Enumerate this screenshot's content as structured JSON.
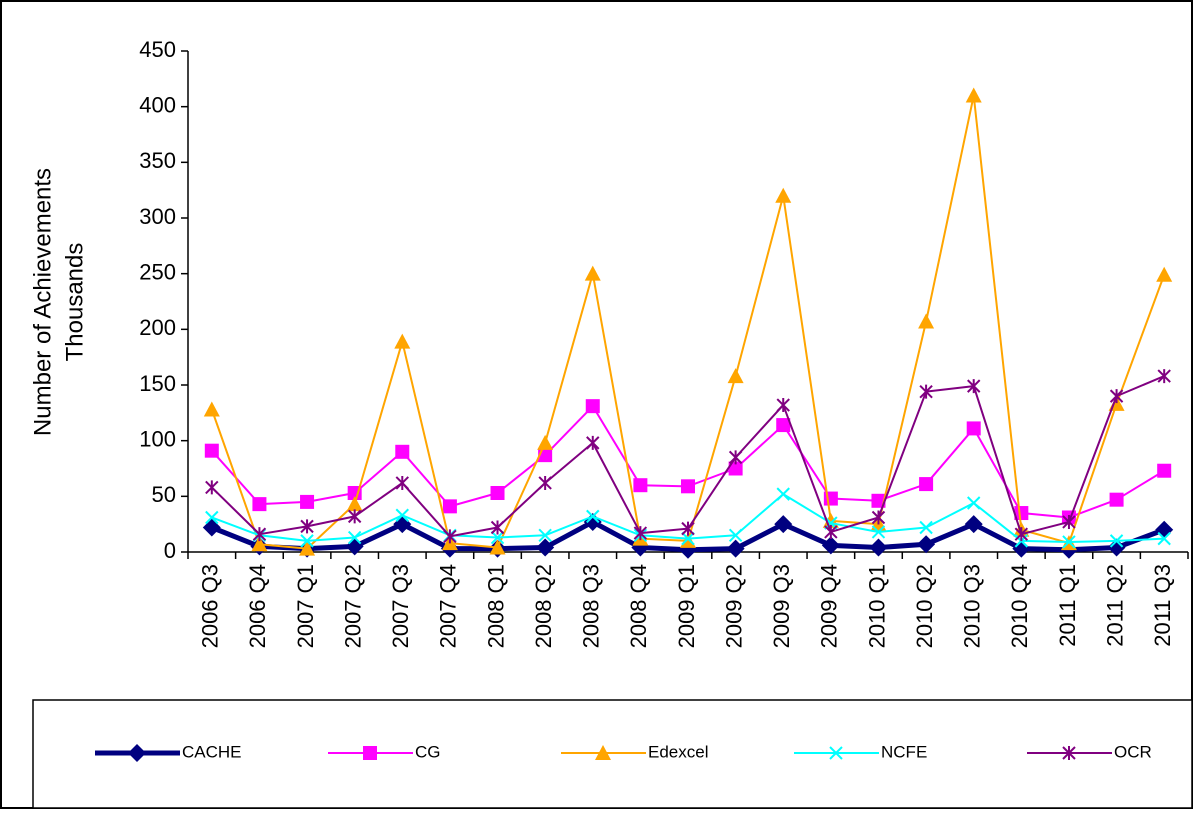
{
  "chart_data": {
    "type": "line",
    "ylabel": "Number of Achievements",
    "ylabel_units": "Thousands",
    "categories": [
      "2006 Q3",
      "2006 Q4",
      "2007 Q1",
      "2007 Q2",
      "2007 Q3",
      "2007 Q4",
      "2008 Q1",
      "2008 Q2",
      "2008 Q3",
      "2008 Q4",
      "2009 Q1",
      "2009 Q2",
      "2009 Q3",
      "2009 Q4",
      "2010 Q1",
      "2010 Q2",
      "2010 Q3",
      "2010 Q4",
      "2011 Q1",
      "2011 Q2",
      "2011 Q3"
    ],
    "series": [
      {
        "name": "CACHE",
        "color": "#000080",
        "marker": "diamond",
        "values": [
          22,
          5,
          3,
          5,
          25,
          3,
          3,
          4,
          27,
          4,
          2,
          3,
          25,
          6,
          4,
          7,
          25,
          3,
          2,
          4,
          20
        ]
      },
      {
        "name": "CG",
        "color": "#ff00ff",
        "marker": "square",
        "values": [
          91,
          43,
          45,
          53,
          90,
          41,
          53,
          87,
          131,
          60,
          59,
          75,
          114,
          48,
          46,
          61,
          111,
          35,
          31,
          47,
          73
        ]
      },
      {
        "name": "Edexcel",
        "color": "#ffa500",
        "marker": "triangle",
        "values": [
          128,
          7,
          3,
          43,
          189,
          8,
          4,
          98,
          250,
          12,
          10,
          158,
          320,
          28,
          25,
          207,
          410,
          20,
          8,
          133,
          249
        ]
      },
      {
        "name": "NCFE",
        "color": "#00ffff",
        "marker": "x",
        "values": [
          31,
          15,
          10,
          13,
          33,
          15,
          13,
          15,
          32,
          15,
          12,
          15,
          52,
          26,
          18,
          22,
          44,
          10,
          9,
          10,
          12
        ]
      },
      {
        "name": "OCR",
        "color": "#800080",
        "marker": "star",
        "values": [
          58,
          16,
          23,
          32,
          62,
          14,
          22,
          62,
          98,
          17,
          21,
          85,
          132,
          18,
          31,
          144,
          149,
          16,
          27,
          140,
          158
        ]
      }
    ],
    "ylim": [
      0,
      450
    ],
    "yticks": [
      0,
      50,
      100,
      150,
      200,
      250,
      300,
      350,
      400,
      450
    ],
    "grid": false,
    "legend": "bottom"
  }
}
